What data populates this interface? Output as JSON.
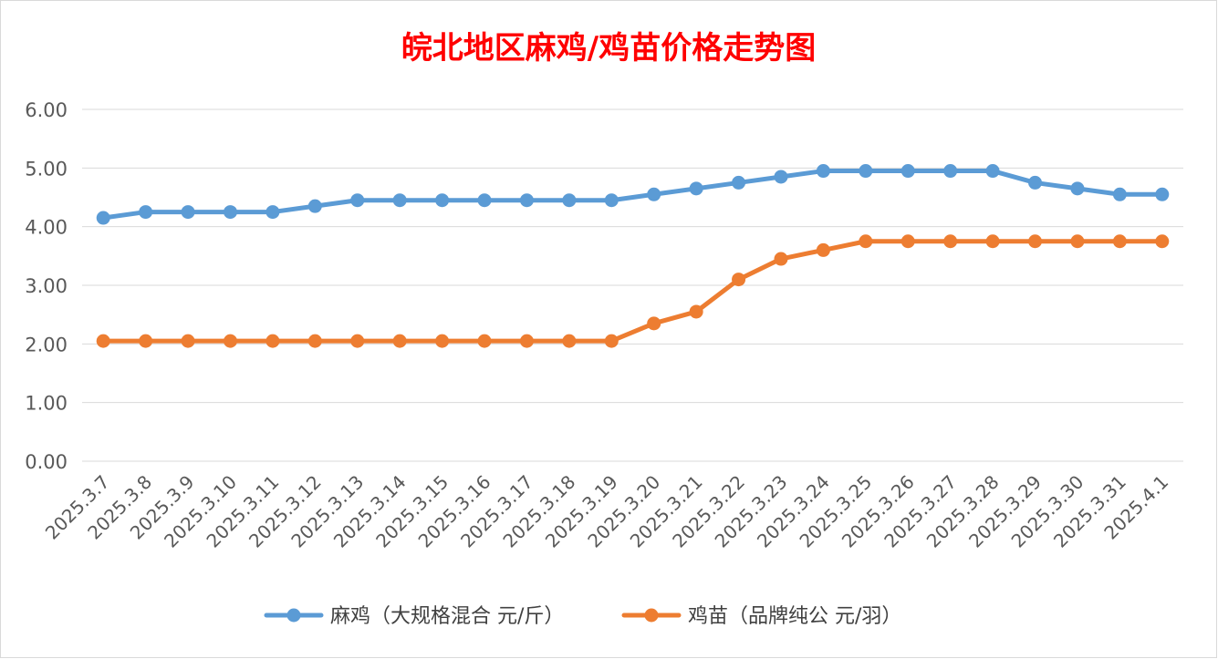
{
  "chart_data": {
    "type": "line",
    "title": "皖北地区麻鸡/鸡苗价格走势图",
    "title_color": "#FF0000",
    "categories": [
      "2025.3.7",
      "2025.3.8",
      "2025.3.9",
      "2025.3.10",
      "2025.3.11",
      "2025.3.12",
      "2025.3.13",
      "2025.3.14",
      "2025.3.15",
      "2025.3.16",
      "2025.3.17",
      "2025.3.18",
      "2025.3.19",
      "2025.3.20",
      "2025.3.21",
      "2025.3.22",
      "2025.3.23",
      "2025.3.24",
      "2025.3.25",
      "2025.3.26",
      "2025.3.27",
      "2025.3.28",
      "2025.3.29",
      "2025.3.30",
      "2025.3.31",
      "2025.4.1"
    ],
    "series": [
      {
        "name": "麻鸡（大规格混合 元/斤）",
        "color": "#5B9BD5",
        "values": [
          4.15,
          4.25,
          4.25,
          4.25,
          4.25,
          4.35,
          4.45,
          4.45,
          4.45,
          4.45,
          4.45,
          4.45,
          4.45,
          4.55,
          4.65,
          4.75,
          4.85,
          4.95,
          4.95,
          4.95,
          4.95,
          4.95,
          4.75,
          4.65,
          4.55,
          4.55
        ]
      },
      {
        "name": "鸡苗（品牌纯公 元/羽）",
        "color": "#ED7D31",
        "values": [
          2.05,
          2.05,
          2.05,
          2.05,
          2.05,
          2.05,
          2.05,
          2.05,
          2.05,
          2.05,
          2.05,
          2.05,
          2.05,
          2.35,
          2.55,
          3.1,
          3.45,
          3.6,
          3.75,
          3.75,
          3.75,
          3.75,
          3.75,
          3.75,
          3.75,
          3.75
        ]
      }
    ],
    "yticks": [
      "0.00",
      "1.00",
      "2.00",
      "3.00",
      "4.00",
      "5.00",
      "6.00"
    ],
    "ylim": [
      0,
      6
    ],
    "grid": true,
    "grid_color": "#D9D9D9",
    "legend_position": "bottom"
  }
}
